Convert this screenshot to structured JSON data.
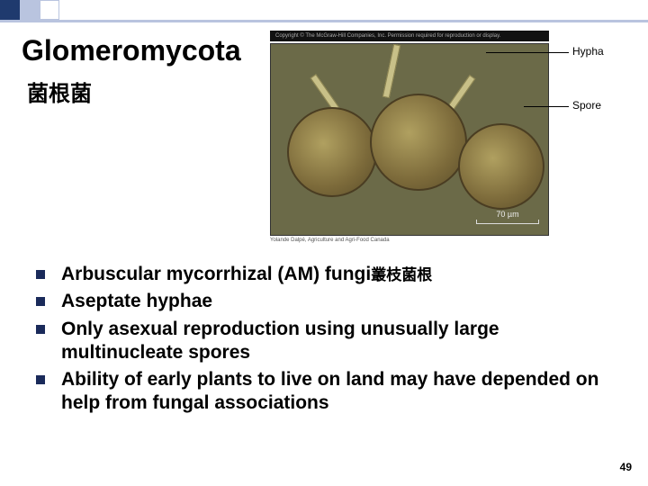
{
  "decor": {
    "squares": [
      "#1f3a6e",
      "#b9c4df",
      "#ffffff"
    ],
    "rule_color": "#b9c4df"
  },
  "title": {
    "text": "Glomeromycota",
    "fontsize": 32
  },
  "subtitle": {
    "text": "菌根菌",
    "fontsize": 24
  },
  "figure": {
    "copyright": "Copyright © The McGraw-Hill Companies, Inc. Permission required for reproduction or display.",
    "credit": "Yolande Dalpé, Agriculture and Agri-Food Canada",
    "scale": "70 µm",
    "labels": {
      "hypha": "Hypha",
      "spore": "Spore"
    }
  },
  "bullets": {
    "fontsize": 21,
    "items": [
      {
        "html": "Arbuscular mycorrhizal (AM) fungi<span class='cjk' style='font-size:17px'>叢枝菌根</span>"
      },
      {
        "html": "Aseptate hyphae"
      },
      {
        "html": "Only asexual reproduction using unusually large multinucleate spores"
      },
      {
        "html": "Ability of early plants to live on land may have depended on help from fungal associations"
      }
    ]
  },
  "pagenum": "49"
}
